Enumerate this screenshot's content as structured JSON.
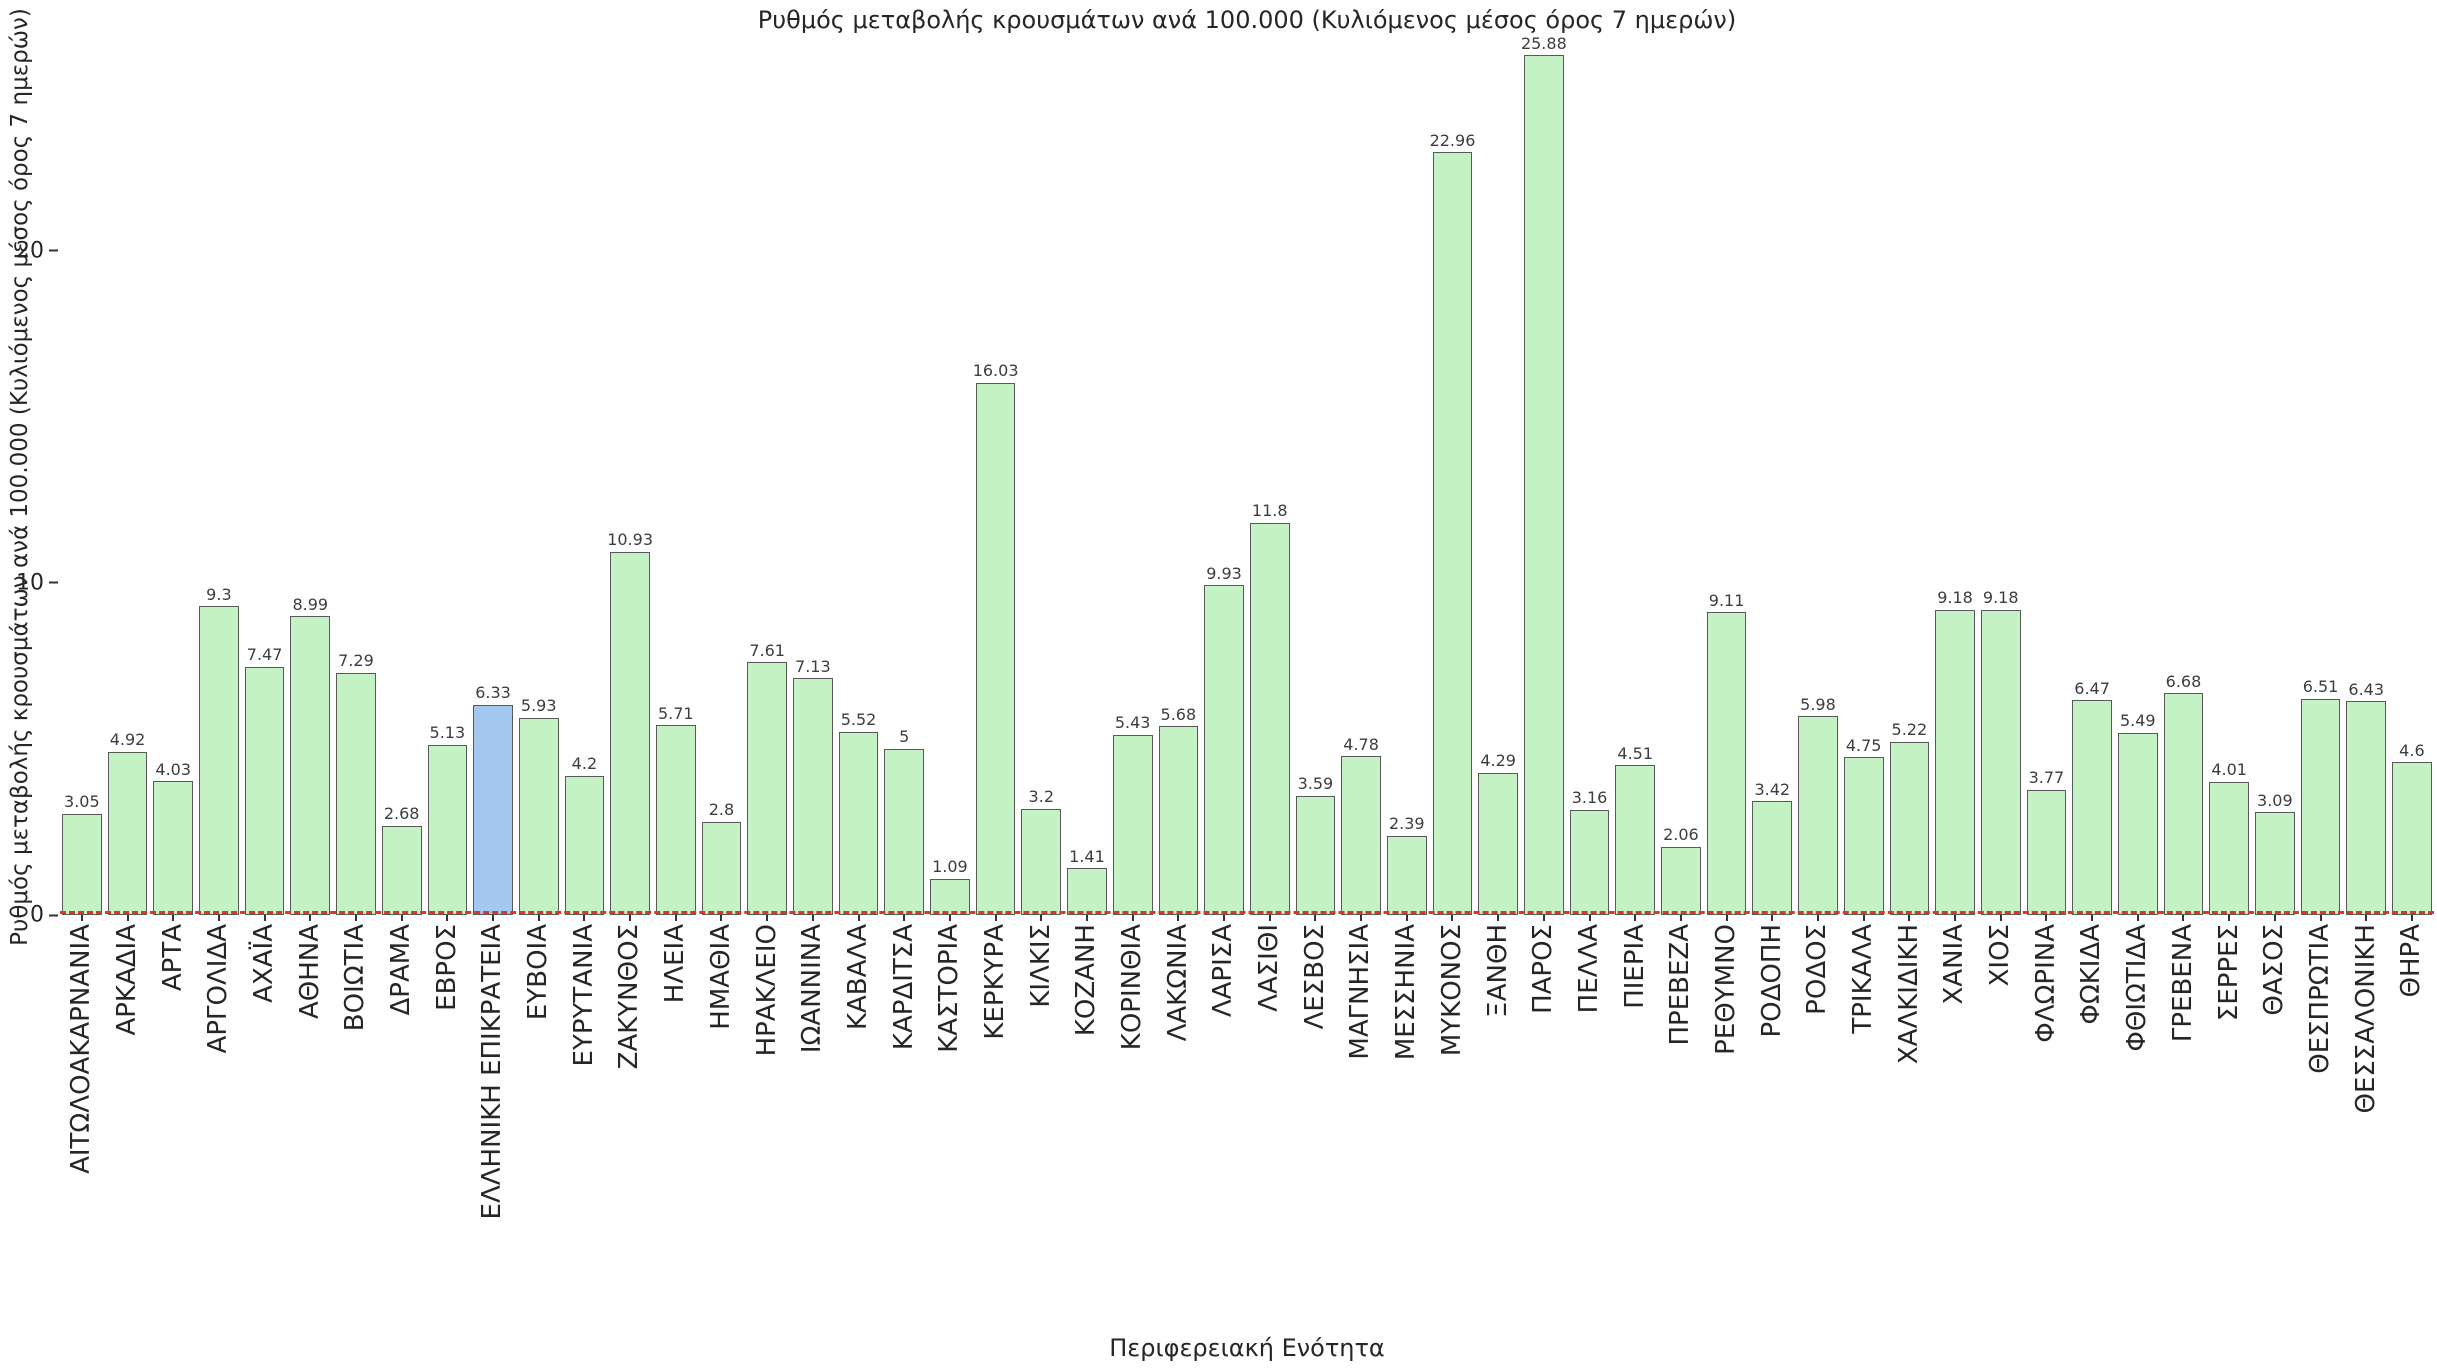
{
  "chart_data": {
    "type": "bar",
    "title": "Ρυθμός μεταβολής κρουσμάτων ανά 100.000 (Κυλιόμενος μέσος όρος 7 ημερών)",
    "xlabel": "Περιφερειακή Ενότητα",
    "ylabel": "Ρυθμός μεταβολής κρουσμάτων ανά 100.000 (Κυλιόμενος μέσος όρος 7 ημερών)",
    "yticks": [
      0,
      10,
      20
    ],
    "ylim": [
      0,
      26.4
    ],
    "grid": false,
    "legend": "none",
    "zero_line": {
      "style": "dashed",
      "color": "#dd3528"
    },
    "bar_color": "#c4f2c4",
    "bar_border_color": "#595959",
    "highlight_category": "ΕΛΛΗΝΙΚΗ ΕΠΙΚΡΑΤΕΙΑ",
    "highlight_color": "#a3c7ef",
    "categories": [
      "ΑΙΤΩΛΟΑΚΑΡΝΑΝΙΑ",
      "ΑΡΚΑΔΙΑ",
      "ΑΡΤΑ",
      "ΑΡΓΟΛΙΔΑ",
      "ΑΧΑΪΑ",
      "ΑΘΗΝΑ",
      "ΒΟΙΩΤΙΑ",
      "ΔΡΑΜΑ",
      "ΕΒΡΟΣ",
      "ΕΛΛΗΝΙΚΗ ΕΠΙΚΡΑΤΕΙΑ",
      "ΕΥΒΟΙΑ",
      "ΕΥΡΥΤΑΝΙΑ",
      "ΖΑΚΥΝΘΟΣ",
      "ΗΛΕΙΑ",
      "ΗΜΑΘΙΑ",
      "ΗΡΑΚΛΕΙΟ",
      "ΙΩΑΝΝΙΝΑ",
      "ΚΑΒΑΛΑ",
      "ΚΑΡΔΙΤΣΑ",
      "ΚΑΣΤΟΡΙΑ",
      "ΚΕΡΚΥΡΑ",
      "ΚΙΛΚΙΣ",
      "ΚΟΖΑΝΗ",
      "ΚΟΡΙΝΘΙΑ",
      "ΛΑΚΩΝΙΑ",
      "ΛΑΡΙΣΑ",
      "ΛΑΣΙΘΙ",
      "ΛΕΣΒΟΣ",
      "ΜΑΓΝΗΣΙΑ",
      "ΜΕΣΣΗΝΙΑ",
      "ΜΥΚΟΝΟΣ",
      "ΞΑΝΘΗ",
      "ΠΑΡΟΣ",
      "ΠΕΛΛΑ",
      "ΠΙΕΡΙΑ",
      "ΠΡΕΒΕΖΑ",
      "ΡΕΘΥΜΝΟ",
      "ΡΟΔΟΠΗ",
      "ΡΟΔΟΣ",
      "ΤΡΙΚΑΛΑ",
      "ΧΑΛΚΙΔΙΚΗ",
      "ΧΑΝΙΑ",
      "ΧΙΟΣ",
      "ΦΛΩΡΙΝΑ",
      "ΦΩΚΙΔΑ",
      "ΦΘΙΩΤΙΔΑ",
      "ΓΡΕΒΕΝΑ",
      "ΣΕΡΡΕΣ",
      "ΘΑΣΟΣ",
      "ΘΕΣΠΡΩΤΙΑ",
      "ΘΕΣΣΑΛΟΝΙΚΗ",
      "ΘΗΡΑ"
    ],
    "values": [
      3.05,
      4.92,
      4.03,
      9.3,
      7.47,
      8.99,
      7.29,
      2.68,
      5.13,
      6.33,
      5.93,
      4.2,
      10.93,
      5.71,
      2.8,
      7.61,
      7.13,
      5.52,
      5,
      1.09,
      16.03,
      3.2,
      1.41,
      5.43,
      5.68,
      9.93,
      11.8,
      3.59,
      4.78,
      2.39,
      22.96,
      4.29,
      25.88,
      3.16,
      4.51,
      2.06,
      9.11,
      3.42,
      5.98,
      4.75,
      5.22,
      9.18,
      9.18,
      3.77,
      6.47,
      5.49,
      6.68,
      4.01,
      3.09,
      6.51,
      6.43,
      4.6
    ]
  }
}
